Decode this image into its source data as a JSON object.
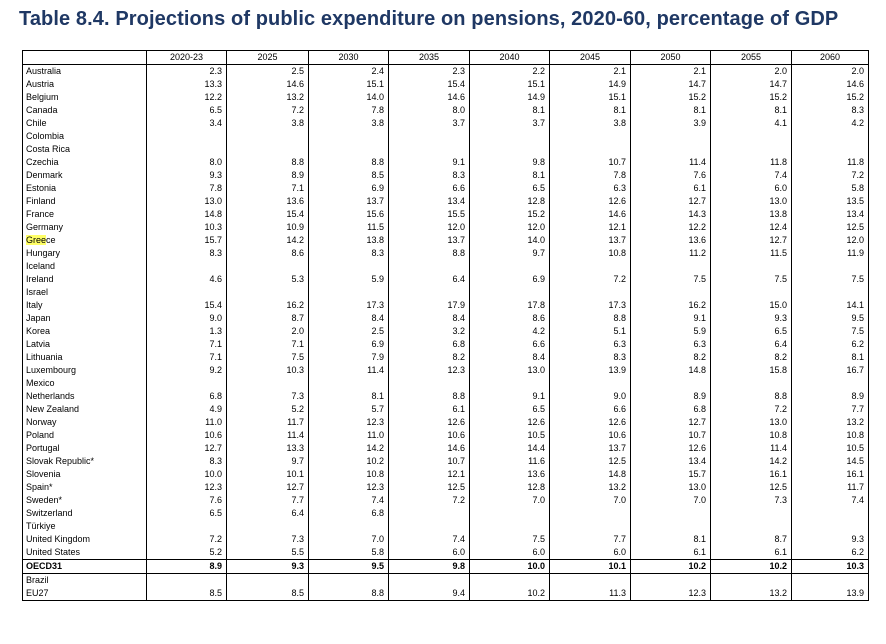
{
  "title": "Table 8.4. Projections of public expenditure on pensions, 2020-60, percentage of GDP",
  "columns": [
    "2020-23",
    "2025",
    "2030",
    "2035",
    "2040",
    "2045",
    "2050",
    "2055",
    "2060"
  ],
  "rows": [
    {
      "name": "Australia",
      "values": [
        "2.3",
        "2.5",
        "2.4",
        "2.3",
        "2.2",
        "2.1",
        "2.1",
        "2.0",
        "2.0"
      ]
    },
    {
      "name": "Austria",
      "values": [
        "13.3",
        "14.6",
        "15.1",
        "15.4",
        "15.1",
        "14.9",
        "14.7",
        "14.7",
        "14.6"
      ]
    },
    {
      "name": "Belgium",
      "values": [
        "12.2",
        "13.2",
        "14.0",
        "14.6",
        "14.9",
        "15.1",
        "15.2",
        "15.2",
        "15.2"
      ]
    },
    {
      "name": "Canada",
      "values": [
        "6.5",
        "7.2",
        "7.8",
        "8.0",
        "8.1",
        "8.1",
        "8.1",
        "8.1",
        "8.3"
      ]
    },
    {
      "name": "Chile",
      "values": [
        "3.4",
        "3.8",
        "3.8",
        "3.7",
        "3.7",
        "3.8",
        "3.9",
        "4.1",
        "4.2"
      ]
    },
    {
      "name": "Colombia",
      "values": [
        "",
        "",
        "",
        "",
        "",
        "",
        "",
        "",
        ""
      ]
    },
    {
      "name": "Costa Rica",
      "values": [
        "",
        "",
        "",
        "",
        "",
        "",
        "",
        "",
        ""
      ]
    },
    {
      "name": "Czechia",
      "values": [
        "8.0",
        "8.8",
        "8.8",
        "9.1",
        "9.8",
        "10.7",
        "11.4",
        "11.8",
        "11.8"
      ]
    },
    {
      "name": "Denmark",
      "values": [
        "9.3",
        "8.9",
        "8.5",
        "8.3",
        "8.1",
        "7.8",
        "7.6",
        "7.4",
        "7.2"
      ]
    },
    {
      "name": "Estonia",
      "values": [
        "7.8",
        "7.1",
        "6.9",
        "6.6",
        "6.5",
        "6.3",
        "6.1",
        "6.0",
        "5.8"
      ]
    },
    {
      "name": "Finland",
      "values": [
        "13.0",
        "13.6",
        "13.7",
        "13.4",
        "12.8",
        "12.6",
        "12.7",
        "13.0",
        "13.5"
      ]
    },
    {
      "name": "France",
      "values": [
        "14.8",
        "15.4",
        "15.6",
        "15.5",
        "15.2",
        "14.6",
        "14.3",
        "13.8",
        "13.4"
      ]
    },
    {
      "name": "Germany",
      "values": [
        "10.3",
        "10.9",
        "11.5",
        "12.0",
        "12.0",
        "12.1",
        "12.2",
        "12.4",
        "12.5"
      ]
    },
    {
      "name": "Greece",
      "values": [
        "15.7",
        "14.2",
        "13.8",
        "13.7",
        "14.0",
        "13.7",
        "13.6",
        "12.7",
        "12.0"
      ],
      "highlight": "Gree"
    },
    {
      "name": "Hungary",
      "values": [
        "8.3",
        "8.6",
        "8.3",
        "8.8",
        "9.7",
        "10.8",
        "11.2",
        "11.5",
        "11.9"
      ]
    },
    {
      "name": "Iceland",
      "values": [
        "",
        "",
        "",
        "",
        "",
        "",
        "",
        "",
        ""
      ]
    },
    {
      "name": "Ireland",
      "values": [
        "4.6",
        "5.3",
        "5.9",
        "6.4",
        "6.9",
        "7.2",
        "7.5",
        "7.5",
        "7.5"
      ]
    },
    {
      "name": "Israel",
      "values": [
        "",
        "",
        "",
        "",
        "",
        "",
        "",
        "",
        ""
      ]
    },
    {
      "name": "Italy",
      "values": [
        "15.4",
        "16.2",
        "17.3",
        "17.9",
        "17.8",
        "17.3",
        "16.2",
        "15.0",
        "14.1"
      ]
    },
    {
      "name": "Japan",
      "values": [
        "9.0",
        "8.7",
        "8.4",
        "8.4",
        "8.6",
        "8.8",
        "9.1",
        "9.3",
        "9.5"
      ]
    },
    {
      "name": "Korea",
      "values": [
        "1.3",
        "2.0",
        "2.5",
        "3.2",
        "4.2",
        "5.1",
        "5.9",
        "6.5",
        "7.5"
      ]
    },
    {
      "name": "Latvia",
      "values": [
        "7.1",
        "7.1",
        "6.9",
        "6.8",
        "6.6",
        "6.3",
        "6.3",
        "6.4",
        "6.2"
      ]
    },
    {
      "name": "Lithuania",
      "values": [
        "7.1",
        "7.5",
        "7.9",
        "8.2",
        "8.4",
        "8.3",
        "8.2",
        "8.2",
        "8.1"
      ]
    },
    {
      "name": "Luxembourg",
      "values": [
        "9.2",
        "10.3",
        "11.4",
        "12.3",
        "13.0",
        "13.9",
        "14.8",
        "15.8",
        "16.7"
      ]
    },
    {
      "name": "Mexico",
      "values": [
        "",
        "",
        "",
        "",
        "",
        "",
        "",
        "",
        ""
      ]
    },
    {
      "name": "Netherlands",
      "values": [
        "6.8",
        "7.3",
        "8.1",
        "8.8",
        "9.1",
        "9.0",
        "8.9",
        "8.8",
        "8.9"
      ]
    },
    {
      "name": "New Zealand",
      "values": [
        "4.9",
        "5.2",
        "5.7",
        "6.1",
        "6.5",
        "6.6",
        "6.8",
        "7.2",
        "7.7"
      ]
    },
    {
      "name": "Norway",
      "values": [
        "11.0",
        "11.7",
        "12.3",
        "12.6",
        "12.6",
        "12.6",
        "12.7",
        "13.0",
        "13.2"
      ]
    },
    {
      "name": "Poland",
      "values": [
        "10.6",
        "11.4",
        "11.0",
        "10.6",
        "10.5",
        "10.6",
        "10.7",
        "10.8",
        "10.8"
      ]
    },
    {
      "name": "Portugal",
      "values": [
        "12.7",
        "13.3",
        "14.2",
        "14.6",
        "14.4",
        "13.7",
        "12.6",
        "11.4",
        "10.5"
      ]
    },
    {
      "name": "Slovak Republic*",
      "values": [
        "8.3",
        "9.7",
        "10.2",
        "10.7",
        "11.6",
        "12.5",
        "13.4",
        "14.2",
        "14.5"
      ]
    },
    {
      "name": "Slovenia",
      "values": [
        "10.0",
        "10.1",
        "10.8",
        "12.1",
        "13.6",
        "14.8",
        "15.7",
        "16.1",
        "16.1"
      ]
    },
    {
      "name": "Spain*",
      "values": [
        "12.3",
        "12.7",
        "12.3",
        "12.5",
        "12.8",
        "13.2",
        "13.0",
        "12.5",
        "11.7"
      ]
    },
    {
      "name": "Sweden*",
      "values": [
        "7.6",
        "7.7",
        "7.4",
        "7.2",
        "7.0",
        "7.0",
        "7.0",
        "7.3",
        "7.4"
      ]
    },
    {
      "name": "Switzerland",
      "values": [
        "6.5",
        "6.4",
        "6.8",
        "",
        "",
        "",
        "",
        "",
        ""
      ]
    },
    {
      "name": "Türkiye",
      "values": [
        "",
        "",
        "",
        "",
        "",
        "",
        "",
        "",
        ""
      ]
    },
    {
      "name": "United Kingdom",
      "values": [
        "7.2",
        "7.3",
        "7.0",
        "7.4",
        "7.5",
        "7.7",
        "8.1",
        "8.7",
        "9.3"
      ]
    },
    {
      "name": "United States",
      "values": [
        "5.2",
        "5.5",
        "5.8",
        "6.0",
        "6.0",
        "6.0",
        "6.1",
        "6.1",
        "6.2"
      ]
    },
    {
      "name": "OECD31",
      "values": [
        "8.9",
        "9.3",
        "9.5",
        "9.8",
        "10.0",
        "10.1",
        "10.2",
        "10.2",
        "10.3"
      ],
      "bold": true,
      "sep": true
    },
    {
      "name": "Brazil",
      "values": [
        "",
        "",
        "",
        "",
        "",
        "",
        "",
        "",
        ""
      ],
      "sep": true
    },
    {
      "name": "EU27",
      "values": [
        "8.5",
        "8.5",
        "8.8",
        "9.4",
        "10.2",
        "11.3",
        "12.3",
        "13.2",
        "13.9"
      ],
      "last": true
    }
  ]
}
